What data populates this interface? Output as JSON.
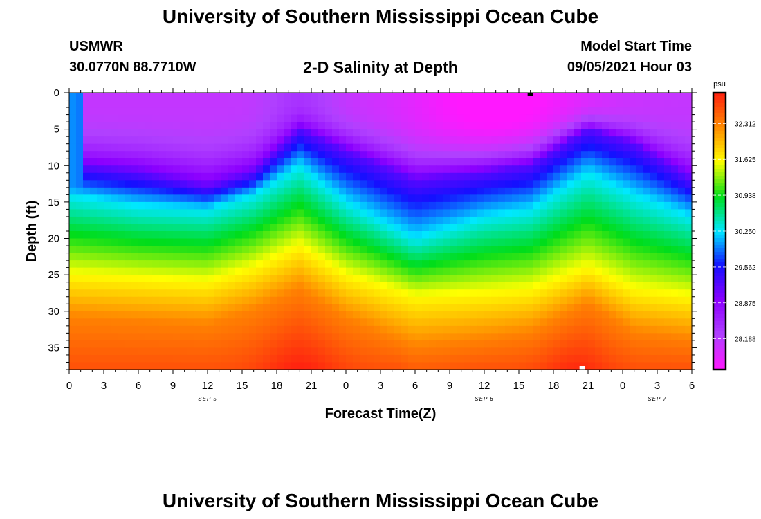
{
  "header": {
    "title": "University of Southern Mississippi Ocean Cube",
    "station_name": "USMWR",
    "station_coords": "30.0770N  88.7710W",
    "model_start_label": "Model Start Time",
    "model_start_value": "09/05/2021 Hour 03"
  },
  "footer": {
    "title": "University of Southern Mississippi Ocean Cube"
  },
  "chart_data": {
    "type": "heatmap",
    "title": "2-D Salinity at Depth",
    "xlabel": "Forecast Time(Z)",
    "ylabel": "Depth (ft)",
    "x_range_hours": [
      0,
      54
    ],
    "y_range_ft": [
      0,
      38
    ],
    "x_tick_labels": [
      "0",
      "3",
      "6",
      "9",
      "12",
      "15",
      "18",
      "21",
      "0",
      "3",
      "6",
      "9",
      "12",
      "15",
      "18",
      "21",
      "0",
      "3",
      "6"
    ],
    "date_labels": [
      {
        "text": "SEP 5",
        "hour": 12
      },
      {
        "text": "SEP 6",
        "hour": 36
      },
      {
        "text": "SEP 7",
        "hour": 51
      }
    ],
    "y_ticks": [
      "0",
      "5",
      "10",
      "15",
      "20",
      "25",
      "30",
      "35"
    ],
    "y_tick_values": [
      0,
      5,
      10,
      15,
      20,
      25,
      30,
      35
    ],
    "colorbar": {
      "unit": "psu",
      "min": 27.6,
      "max": 32.9,
      "tick_labels": [
        "32.312",
        "31.625",
        "30.938",
        "30.250",
        "29.562",
        "28.875",
        "28.188"
      ],
      "tick_values": [
        32.312,
        31.625,
        30.938,
        30.25,
        29.562,
        28.875,
        28.188
      ]
    },
    "salinity_profile": {
      "description_hours": [
        0,
        6,
        12,
        16,
        20,
        24,
        30,
        36,
        40,
        45,
        49,
        54
      ],
      "isohaline_29_2_depth_ft": [
        10,
        11,
        13,
        11,
        5,
        8,
        12,
        11,
        10,
        5,
        7,
        12
      ],
      "isohaline_30_25_depth_ft": [
        14,
        15.5,
        16,
        14,
        10,
        15,
        20,
        17,
        16,
        11,
        14,
        17
      ],
      "isohaline_31_6_depth_ft": [
        25,
        25.5,
        26,
        24,
        21,
        25,
        28,
        27.5,
        27,
        24,
        27,
        28
      ],
      "isohaline_32_3_depth_ft": [
        31,
        31.5,
        32,
        30,
        27,
        31,
        35,
        34,
        33,
        29,
        33,
        34
      ]
    },
    "markers": [
      {
        "color": "#000000",
        "hour": 40,
        "depth_ft": 0
      },
      {
        "color": "#ffffff",
        "hour": 44.5,
        "depth_ft": 38
      }
    ],
    "palette": [
      "#ff18ff",
      "#b040ff",
      "#8c00ff",
      "#1410ff",
      "#00e8ff",
      "#00dd1a",
      "#ffff00",
      "#ff8a00",
      "#ff2010"
    ]
  }
}
